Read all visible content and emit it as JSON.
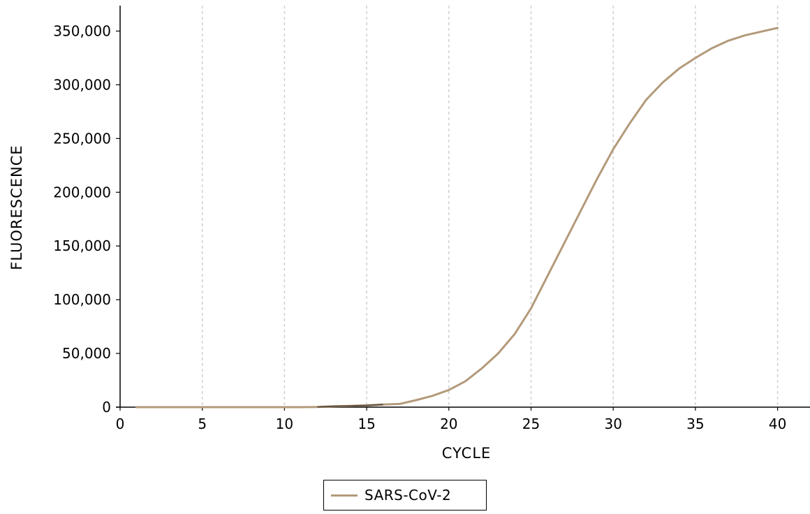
{
  "chart_data": {
    "type": "line",
    "xlabel": "CYCLE",
    "ylabel": "FLUORESCENCE",
    "xlim": [
      0,
      41
    ],
    "ylim": [
      0,
      372000
    ],
    "xticks": [
      0,
      5,
      10,
      15,
      20,
      25,
      30,
      35,
      40
    ],
    "xtick_labels": [
      "0",
      "5",
      "10",
      "15",
      "20",
      "25",
      "30",
      "35",
      "40"
    ],
    "yticks": [
      0,
      50000,
      100000,
      150000,
      200000,
      250000,
      300000,
      350000
    ],
    "ytick_labels": [
      "0",
      "50,000",
      "100,000",
      "150,000",
      "200,000",
      "250,000",
      "300,000",
      "350,000"
    ],
    "grid": "vertical dashed",
    "legend_position": "bottom-center",
    "series": [
      {
        "name": "SARS-CoV-2",
        "color": "#b39a7a",
        "x": [
          1,
          2,
          3,
          4,
          5,
          6,
          7,
          8,
          9,
          10,
          11,
          12,
          13,
          14,
          15,
          16,
          17,
          18,
          19,
          20,
          21,
          22,
          23,
          24,
          25,
          26,
          27,
          28,
          29,
          30,
          31,
          32,
          33,
          34,
          35,
          36,
          37,
          38,
          39,
          40
        ],
        "y": [
          0,
          0,
          0,
          0,
          0,
          0,
          0,
          0,
          0,
          0,
          0,
          200,
          800,
          1200,
          1600,
          2500,
          3000,
          6500,
          10500,
          16000,
          24000,
          36000,
          50000,
          68000,
          92000,
          122000,
          152000,
          182000,
          212000,
          240000,
          264000,
          286000,
          302000,
          315000,
          325000,
          334000,
          341000,
          346000,
          349500,
          353000
        ]
      }
    ]
  }
}
